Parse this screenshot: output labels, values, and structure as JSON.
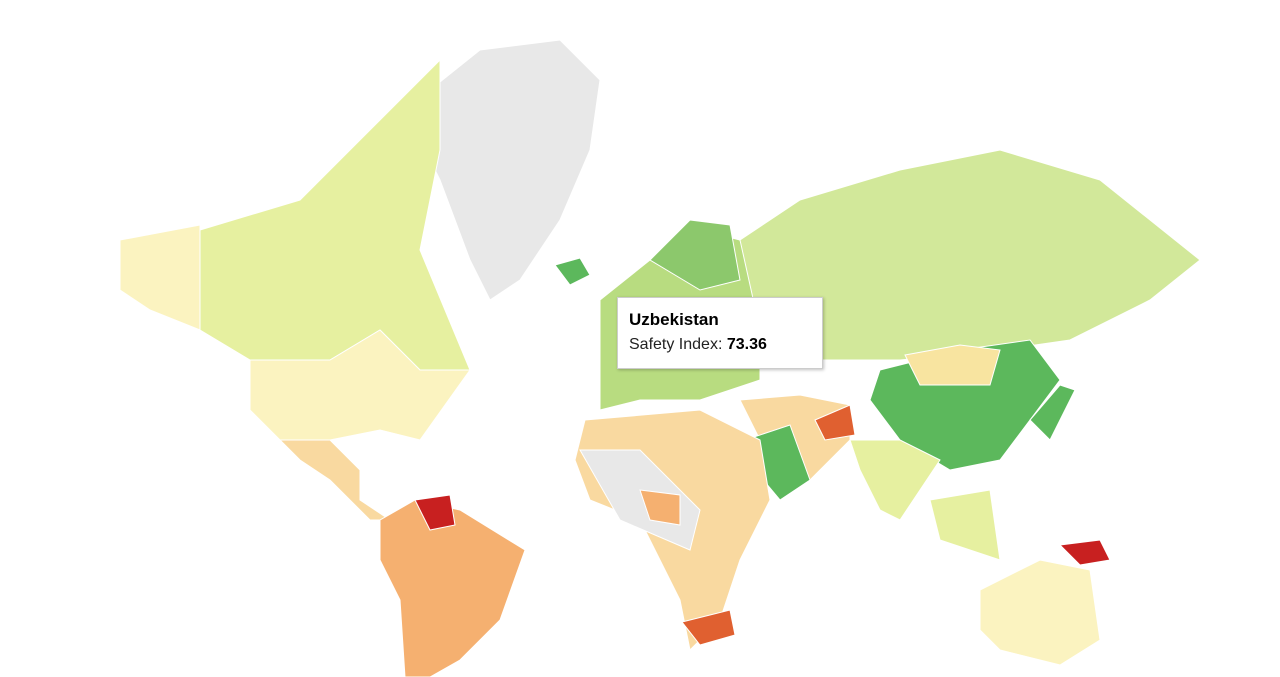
{
  "tooltip": {
    "title": "Uzbekistan",
    "label": "Safety Index:",
    "value": 73.36
  }
}
